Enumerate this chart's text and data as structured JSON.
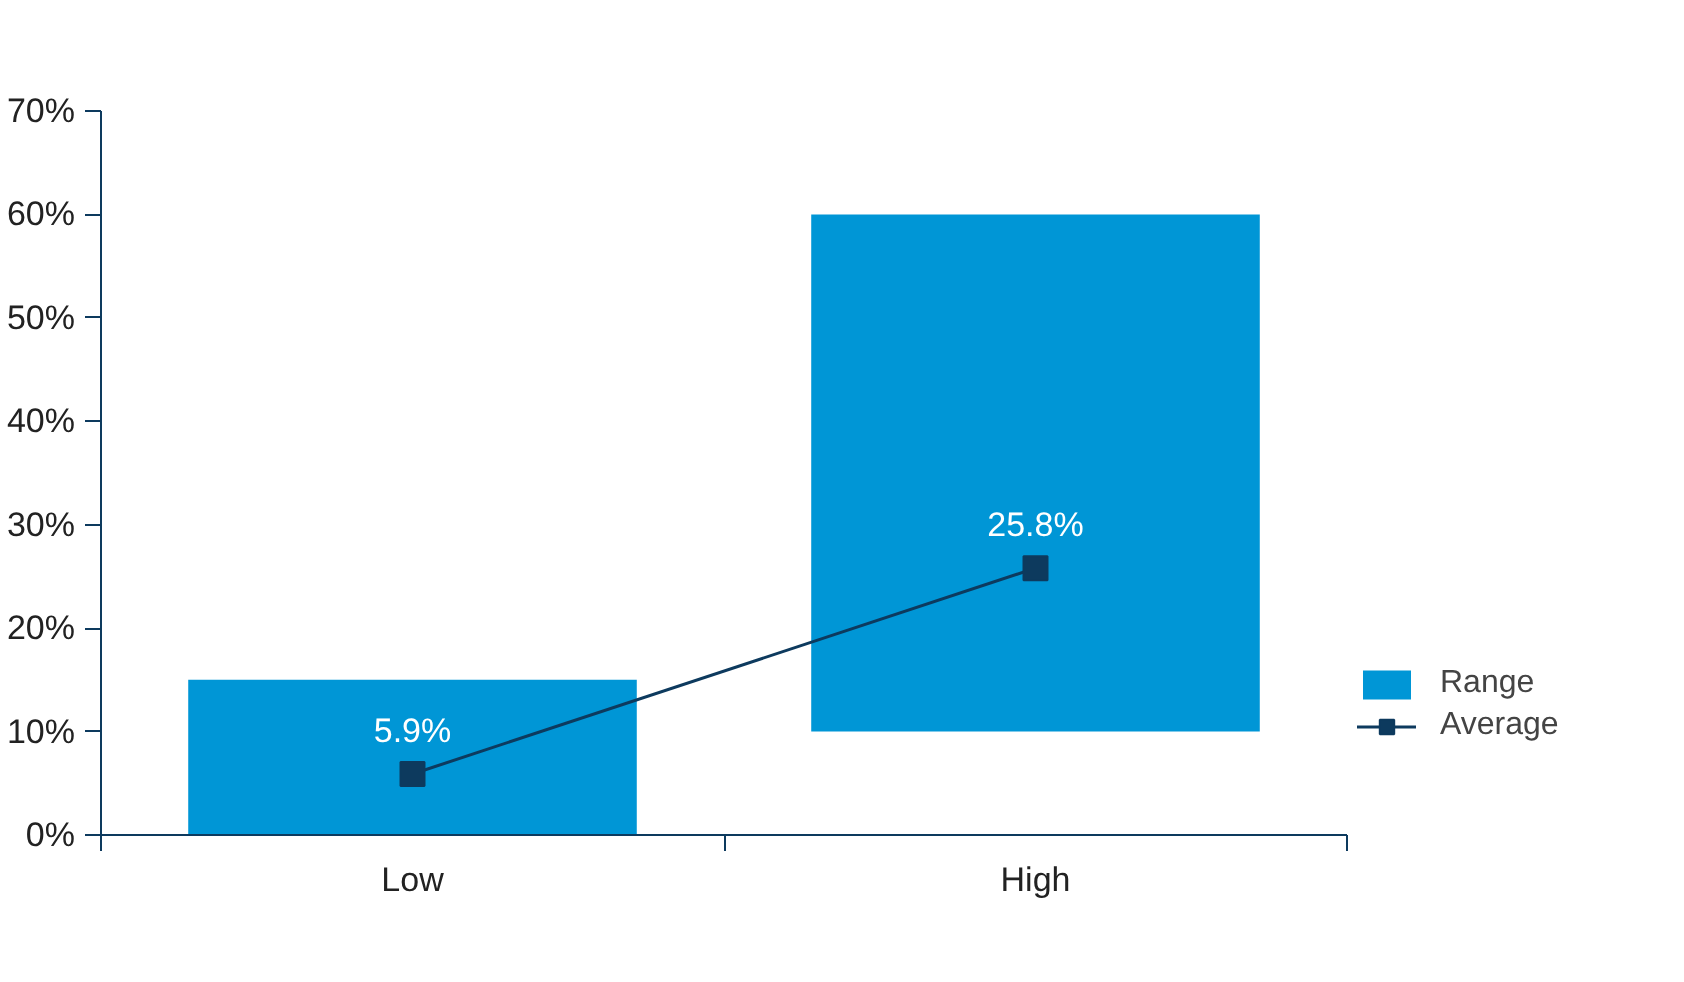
{
  "chart_data": {
    "type": "bar",
    "categories": [
      "Low",
      "High"
    ],
    "series": [
      {
        "name": "Range",
        "color": "#0096d6",
        "base": [
          0,
          10
        ],
        "values": [
          15,
          50
        ]
      },
      {
        "name": "Average",
        "type": "line",
        "color": "#0d3a5e",
        "marker": "square",
        "values": [
          5.9,
          25.8
        ],
        "value_labels": [
          "5.9%",
          "25.8%"
        ]
      }
    ],
    "ylim": [
      0,
      70
    ],
    "yticks": [
      {
        "value": 0,
        "label": "0%"
      },
      {
        "value": 10,
        "label": "10%"
      },
      {
        "value": 20,
        "label": "20%"
      },
      {
        "value": 30,
        "label": "30%"
      },
      {
        "value": 40,
        "label": "40%"
      },
      {
        "value": 50,
        "label": "50%"
      },
      {
        "value": 60,
        "label": "60%"
      },
      {
        "value": 70,
        "label": "70%"
      }
    ],
    "grid": false,
    "legend": "right"
  }
}
